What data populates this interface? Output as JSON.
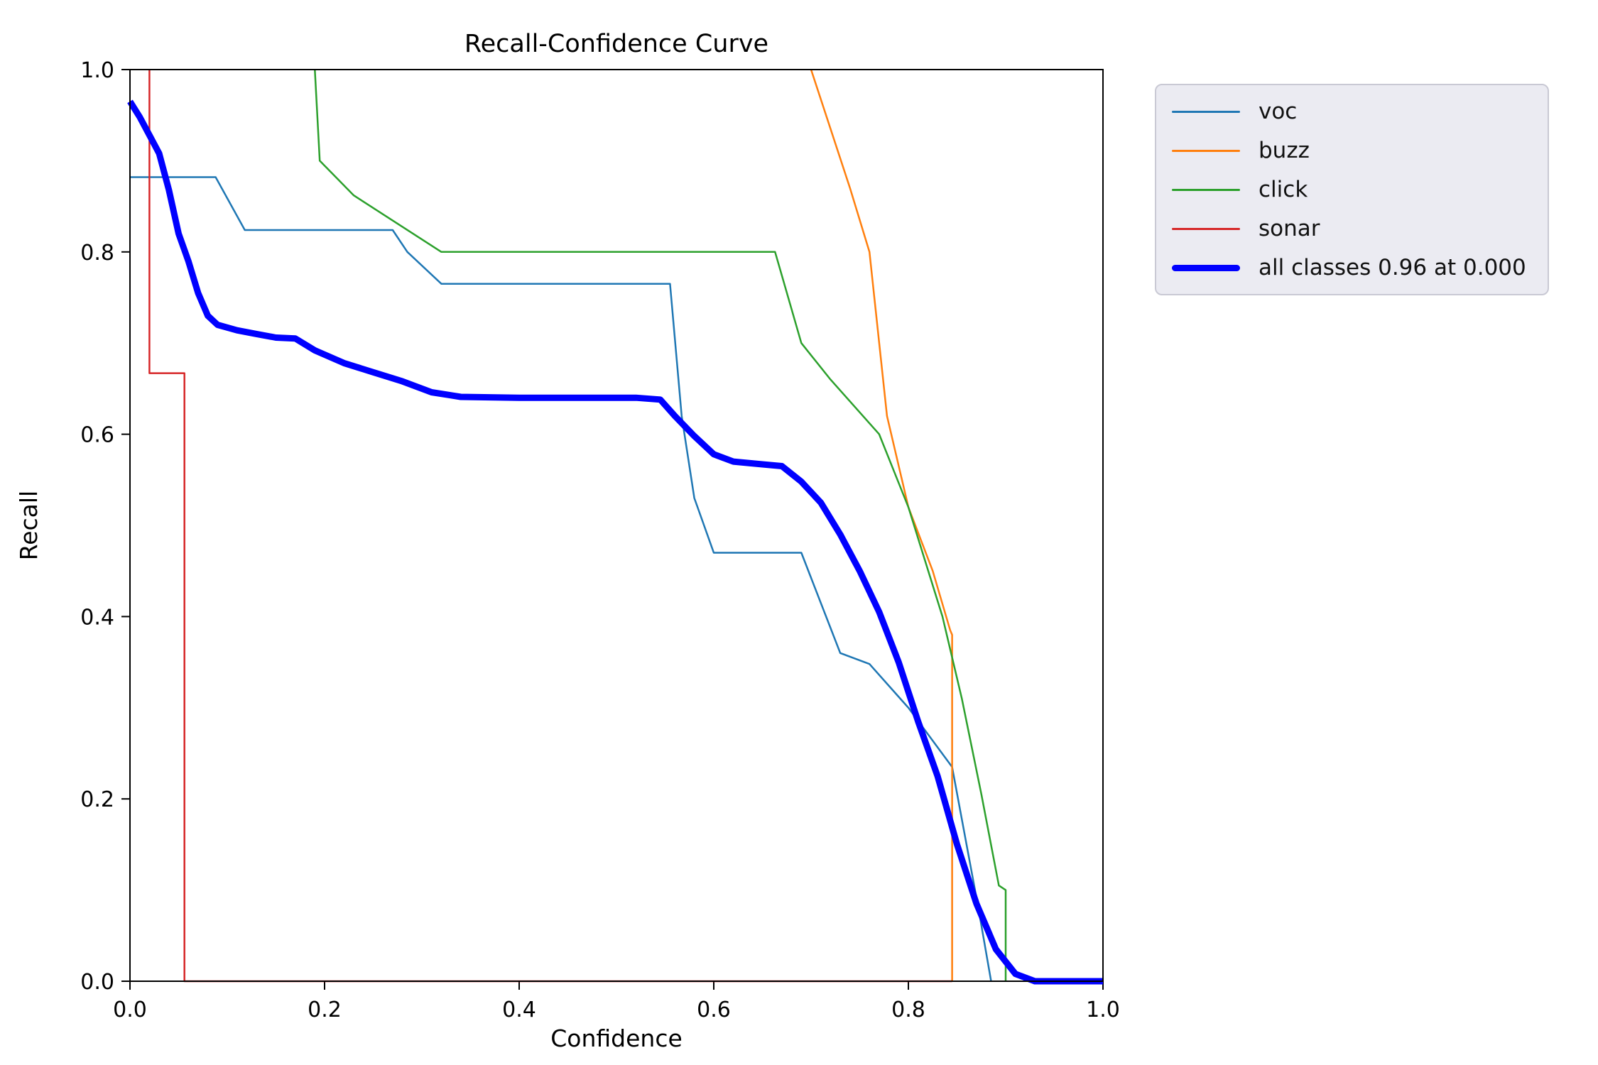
{
  "chart_data": {
    "type": "line",
    "title": "Recall-Confidence Curve",
    "xlabel": "Confidence",
    "ylabel": "Recall",
    "xlim": [
      0.0,
      1.0
    ],
    "ylim": [
      0.0,
      1.0
    ],
    "xticks": [
      0.0,
      0.2,
      0.4,
      0.6,
      0.8,
      1.0
    ],
    "yticks": [
      0.0,
      0.2,
      0.4,
      0.6,
      0.8,
      1.0
    ],
    "grid": false,
    "legend_position": "upper-right-outside",
    "colors": {
      "voc": "#1f77b4",
      "buzz": "#ff7f0e",
      "click": "#2ca02c",
      "sonar": "#d62728",
      "all_classes": "#0000ff"
    },
    "series": [
      {
        "name": "voc",
        "color": "#1f77b4",
        "width": 2.5,
        "x": [
          0.0,
          0.088,
          0.118,
          0.27,
          0.285,
          0.32,
          0.555,
          0.567,
          0.58,
          0.6,
          0.69,
          0.73,
          0.76,
          0.8,
          0.845,
          0.872,
          0.885
        ],
        "y": [
          0.882,
          0.882,
          0.824,
          0.824,
          0.8,
          0.765,
          0.765,
          0.62,
          0.53,
          0.47,
          0.47,
          0.36,
          0.348,
          0.3,
          0.235,
          0.08,
          0.0
        ]
      },
      {
        "name": "buzz",
        "color": "#ff7f0e",
        "width": 2.5,
        "x": [
          0.7,
          0.74,
          0.76,
          0.778,
          0.8,
          0.825,
          0.843,
          0.845,
          0.845
        ],
        "y": [
          1.0,
          0.87,
          0.8,
          0.62,
          0.52,
          0.45,
          0.385,
          0.38,
          0.0
        ]
      },
      {
        "name": "click",
        "color": "#2ca02c",
        "width": 2.5,
        "x": [
          0.19,
          0.195,
          0.23,
          0.32,
          0.663,
          0.69,
          0.72,
          0.77,
          0.8,
          0.835,
          0.855,
          0.875,
          0.893,
          0.9,
          0.9
        ],
        "y": [
          1.0,
          0.9,
          0.862,
          0.8,
          0.8,
          0.7,
          0.66,
          0.6,
          0.52,
          0.4,
          0.31,
          0.205,
          0.105,
          0.1,
          0.0
        ]
      },
      {
        "name": "sonar",
        "color": "#d62728",
        "width": 2.5,
        "x": [
          0.02,
          0.02,
          0.056,
          0.056,
          0.845
        ],
        "y": [
          1.0,
          0.667,
          0.667,
          0.0,
          0.0
        ]
      },
      {
        "name": "all classes 0.96 at 0.000",
        "color": "#0000ff",
        "width": 9,
        "x": [
          0.0,
          0.01,
          0.02,
          0.03,
          0.04,
          0.05,
          0.06,
          0.07,
          0.08,
          0.09,
          0.11,
          0.13,
          0.15,
          0.17,
          0.19,
          0.22,
          0.25,
          0.28,
          0.31,
          0.34,
          0.4,
          0.46,
          0.52,
          0.545,
          0.56,
          0.58,
          0.6,
          0.62,
          0.65,
          0.67,
          0.69,
          0.71,
          0.73,
          0.75,
          0.77,
          0.79,
          0.81,
          0.83,
          0.85,
          0.87,
          0.89,
          0.91,
          0.93,
          1.0
        ],
        "y": [
          0.965,
          0.948,
          0.928,
          0.908,
          0.868,
          0.82,
          0.79,
          0.755,
          0.73,
          0.72,
          0.714,
          0.71,
          0.706,
          0.705,
          0.692,
          0.678,
          0.668,
          0.658,
          0.646,
          0.641,
          0.64,
          0.64,
          0.64,
          0.638,
          0.62,
          0.598,
          0.578,
          0.57,
          0.567,
          0.565,
          0.548,
          0.525,
          0.49,
          0.45,
          0.405,
          0.35,
          0.285,
          0.225,
          0.15,
          0.085,
          0.035,
          0.008,
          0.0,
          0.0
        ]
      }
    ]
  }
}
